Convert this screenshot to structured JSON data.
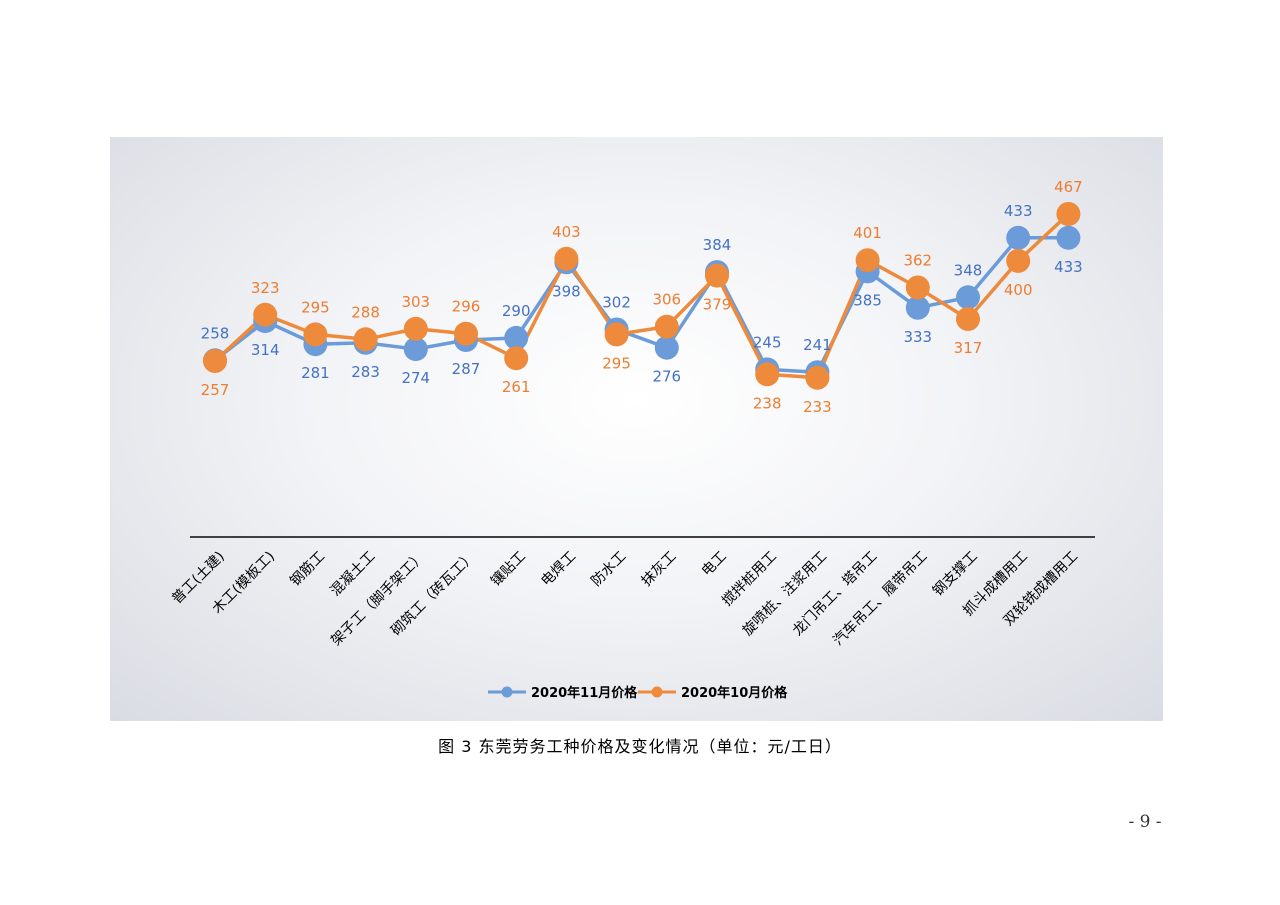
{
  "caption": "图 3   东莞劳务工种价格及变化情况（单位：元/工日）",
  "page_number": "- 9 -",
  "colors": {
    "blue": "#6b9bd9",
    "orange": "#ed8a3c",
    "blue_text": "#4472c4",
    "orange_text": "#ed7d31"
  },
  "chart_data": {
    "type": "line",
    "categories": [
      "普工(土建)",
      "木工(模板工)",
      "钢筋工",
      "混凝土工",
      "架子工（脚手架工）",
      "砌筑工（砖瓦工）",
      "镶贴工",
      "电焊工",
      "防水工",
      "抹灰工",
      "电工",
      "搅拌桩用工",
      "旋喷桩、注浆用工",
      "龙门吊工、塔吊工",
      "汽车吊工、履带吊工",
      "钢支撑工",
      "抓斗成槽用工",
      "双轮铣成槽用工"
    ],
    "series": [
      {
        "name": "2020年11月价格",
        "values": [
          258,
          314,
          281,
          283,
          274,
          287,
          290,
          398,
          302,
          276,
          384,
          245,
          241,
          385,
          333,
          348,
          433,
          433
        ]
      },
      {
        "name": "2020年10月价格",
        "values": [
          257,
          323,
          295,
          288,
          303,
          296,
          261,
          403,
          295,
          306,
          379,
          238,
          233,
          401,
          362,
          317,
          400,
          467
        ]
      }
    ],
    "legend": "bottom"
  }
}
